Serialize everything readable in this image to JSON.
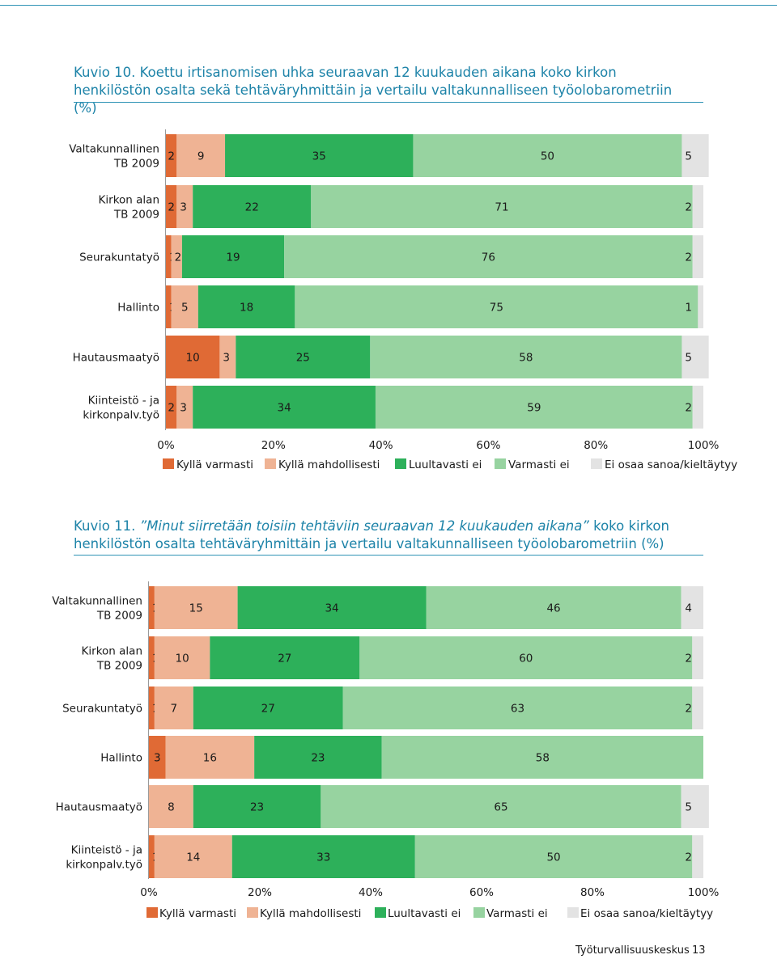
{
  "figures": [
    {
      "caption_label": "Kuvio 10.",
      "caption_italic": "",
      "caption_text": "Koettu irtisanomisen uhka seuraavan 12 kuukauden aikana koko kirkon henkilöstön osalta sekä tehtäväryhmittäin ja vertailu valtakunnalliseen työolobarometriin (%)"
    },
    {
      "caption_label": "Kuvio 11.",
      "caption_italic": "”Minut siirretään toisiin tehtäviin seuraavan 12 kuukauden aikana”",
      "caption_text": "koko kirkon henkilöstön osalta tehtäväryhmittäin ja vertailu valtakunnalliseen työolobarometriin (%)"
    }
  ],
  "colors": {
    "series": [
      "#e06a35",
      "#efb394",
      "#2db05a",
      "#97d3a0",
      "#e3e3e3"
    ],
    "accent": "#1d83a8"
  },
  "chart_data": [
    {
      "type": "bar",
      "orientation": "horizontal",
      "stacked": true,
      "categories": [
        "Valtakunnallinen\nTB 2009",
        "Kirkon alan\nTB 2009",
        "Seurakuntatyö",
        "Hallinto",
        "Hautausmaatyö",
        "Kiinteistö - ja\nkirkonpalv.työ"
      ],
      "series": [
        {
          "name": "Kyllä varmasti",
          "values": [
            2,
            2,
            1,
            1,
            10,
            2
          ]
        },
        {
          "name": "Kyllä mahdollisesti",
          "values": [
            9,
            3,
            2,
            5,
            3,
            3
          ]
        },
        {
          "name": "Luultavasti ei",
          "values": [
            35,
            22,
            19,
            18,
            25,
            34
          ]
        },
        {
          "name": "Varmasti ei",
          "values": [
            50,
            71,
            76,
            75,
            58,
            59
          ]
        },
        {
          "name": "Ei osaa sanoa/kieltäytyy",
          "values": [
            5,
            2,
            2,
            1,
            5,
            2
          ]
        }
      ],
      "data_labels": [
        [
          "2",
          "9",
          "35",
          "50",
          "5"
        ],
        [
          "2",
          "3",
          "22",
          "71",
          "2"
        ],
        [
          "1",
          "2",
          "19",
          "76",
          "2"
        ],
        [
          "1",
          "5",
          "18",
          "75",
          "1"
        ],
        [
          "10",
          "3",
          "25",
          "58",
          "5"
        ],
        [
          "2",
          "3",
          "34",
          "59",
          "2"
        ]
      ],
      "xlim": [
        0,
        100
      ],
      "xticks": [
        "0%",
        "20%",
        "40%",
        "60%",
        "80%",
        "100%"
      ],
      "legend_position": "bottom"
    },
    {
      "type": "bar",
      "orientation": "horizontal",
      "stacked": true,
      "categories": [
        "Valtakunnallinen\nTB 2009",
        "Kirkon alan\nTB 2009",
        "Seurakuntatyö",
        "Hallinto",
        "Hautausmaatyö",
        "Kiinteistö - ja\nkirkonpalv.työ"
      ],
      "series": [
        {
          "name": "Kyllä varmasti",
          "values": [
            1,
            1,
            1,
            3,
            0,
            1
          ]
        },
        {
          "name": "Kyllä mahdollisesti",
          "values": [
            15,
            10,
            7,
            16,
            8,
            14
          ]
        },
        {
          "name": "Luultavasti ei",
          "values": [
            34,
            27,
            27,
            23,
            23,
            33
          ]
        },
        {
          "name": "Varmasti ei",
          "values": [
            46,
            60,
            63,
            58,
            65,
            50
          ]
        },
        {
          "name": "Ei osaa sanoa/kieltäytyy",
          "values": [
            4,
            2,
            2,
            0,
            5,
            2
          ]
        }
      ],
      "data_labels": [
        [
          "1",
          "15",
          "34",
          "46",
          "4"
        ],
        [
          "1",
          "10",
          "27",
          "60",
          "2"
        ],
        [
          "1",
          "7",
          "27",
          "63",
          "2"
        ],
        [
          "3",
          "16",
          "23",
          "58",
          ""
        ],
        [
          "",
          "8",
          "23",
          "65",
          "5"
        ],
        [
          "1",
          "14",
          "33",
          "50",
          "2"
        ]
      ],
      "xlim": [
        0,
        100
      ],
      "xticks": [
        "0%",
        "20%",
        "40%",
        "60%",
        "80%",
        "100%"
      ],
      "legend_position": "bottom"
    }
  ],
  "footer": {
    "publisher": "Työturvallisuuskeskus",
    "page_number": "13"
  }
}
